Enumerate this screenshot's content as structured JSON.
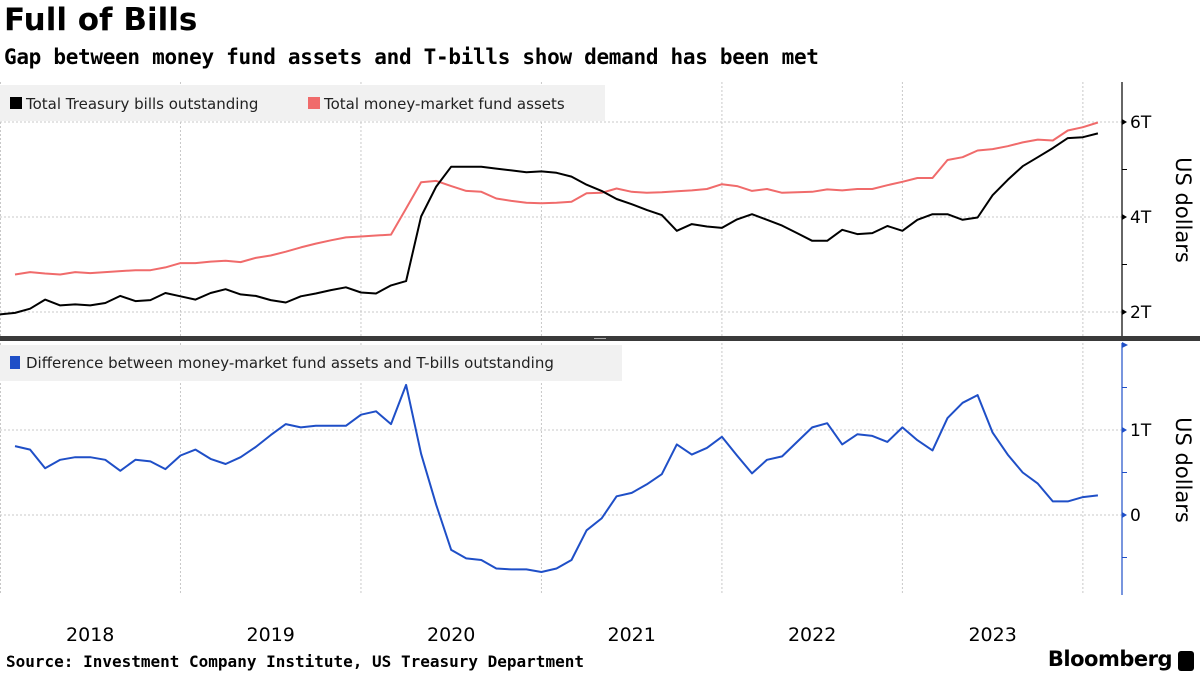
{
  "title": "Full of Bills",
  "subtitle": "Gap between money fund assets and T-bills show demand has been met",
  "source": "Source: Investment Company Institute, US Treasury Department",
  "brand": "Bloomberg",
  "chart_data": [
    {
      "type": "line",
      "panel": "top",
      "frequency": "monthly",
      "x_start": "2017-12",
      "x_tick_labels": [
        "2018",
        "2019",
        "2020",
        "2021",
        "2022",
        "2023"
      ],
      "ylabel": "US dollars",
      "y_tick_labels": [
        "2T",
        "4T",
        "6T"
      ],
      "y_ticks": [
        2,
        4,
        6
      ],
      "ylim": [
        1.5,
        6.85
      ],
      "unit": "trillion USD",
      "grid": true,
      "legend_placement": "top-left",
      "series": [
        {
          "name": "Total Treasury bills outstanding",
          "color": "#000000",
          "start_index": 0,
          "values": [
            1.95,
            1.98,
            2.07,
            2.26,
            2.14,
            2.16,
            2.14,
            2.19,
            2.34,
            2.23,
            2.25,
            2.4,
            2.33,
            2.26,
            2.4,
            2.48,
            2.37,
            2.34,
            2.25,
            2.2,
            2.33,
            2.39,
            2.46,
            2.52,
            2.41,
            2.39,
            2.56,
            2.65,
            4.01,
            4.64,
            5.06,
            5.06,
            5.06,
            5.02,
            4.98,
            4.94,
            4.96,
            4.93,
            4.85,
            4.68,
            4.55,
            4.38,
            4.27,
            4.15,
            4.04,
            3.71,
            3.85,
            3.8,
            3.77,
            3.95,
            4.06,
            3.94,
            3.82,
            3.66,
            3.5,
            3.5,
            3.73,
            3.64,
            3.66,
            3.81,
            3.71,
            3.94,
            4.06,
            4.06,
            3.94,
            3.99,
            4.46,
            4.78,
            5.07,
            5.26,
            5.45,
            5.66,
            5.68,
            5.76
          ]
        },
        {
          "name": "Total money-market fund assets",
          "color": "#f06b6b",
          "start_index": 1,
          "values": [
            2.79,
            2.84,
            2.81,
            2.79,
            2.84,
            2.82,
            2.84,
            2.86,
            2.88,
            2.88,
            2.94,
            3.03,
            3.03,
            3.06,
            3.08,
            3.05,
            3.14,
            3.19,
            3.27,
            3.36,
            3.44,
            3.51,
            3.57,
            3.59,
            3.61,
            3.63,
            4.18,
            4.73,
            4.76,
            4.65,
            4.55,
            4.53,
            4.39,
            4.34,
            4.3,
            4.29,
            4.3,
            4.32,
            4.5,
            4.51,
            4.6,
            4.53,
            4.51,
            4.52,
            4.54,
            4.56,
            4.59,
            4.69,
            4.65,
            4.55,
            4.59,
            4.51,
            4.52,
            4.53,
            4.58,
            4.56,
            4.59,
            4.59,
            4.67,
            4.74,
            4.82,
            4.82,
            5.2,
            5.26,
            5.4,
            5.43,
            5.49,
            5.57,
            5.63,
            5.61,
            5.82,
            5.89,
            5.99
          ]
        }
      ]
    },
    {
      "type": "line",
      "panel": "bottom",
      "frequency": "monthly",
      "x_start": "2017-12",
      "ylabel": "US dollars",
      "y_tick_labels": [
        "0",
        "1T"
      ],
      "y_ticks": [
        0,
        1
      ],
      "ylim": [
        -0.94,
        2.0
      ],
      "unit": "trillion USD",
      "grid": true,
      "legend_placement": "top-left",
      "series": [
        {
          "name": "Difference between money-market fund assets and T-bills outstanding",
          "color": "#1f4fc7",
          "start_index": 1,
          "values": [
            0.81,
            0.77,
            0.55,
            0.65,
            0.68,
            0.68,
            0.65,
            0.52,
            0.65,
            0.63,
            0.54,
            0.7,
            0.77,
            0.66,
            0.6,
            0.68,
            0.8,
            0.94,
            1.07,
            1.03,
            1.05,
            1.05,
            1.05,
            1.18,
            1.22,
            1.07,
            1.53,
            0.72,
            0.12,
            -0.41,
            -0.51,
            -0.53,
            -0.63,
            -0.64,
            -0.64,
            -0.67,
            -0.63,
            -0.53,
            -0.18,
            -0.04,
            0.22,
            0.26,
            0.36,
            0.48,
            0.83,
            0.71,
            0.79,
            0.92,
            0.7,
            0.49,
            0.65,
            0.69,
            0.86,
            1.03,
            1.08,
            0.83,
            0.95,
            0.93,
            0.86,
            1.03,
            0.88,
            0.76,
            1.14,
            1.32,
            1.41,
            0.97,
            0.71,
            0.5,
            0.37,
            0.16,
            0.16,
            0.21,
            0.23
          ]
        }
      ]
    }
  ]
}
